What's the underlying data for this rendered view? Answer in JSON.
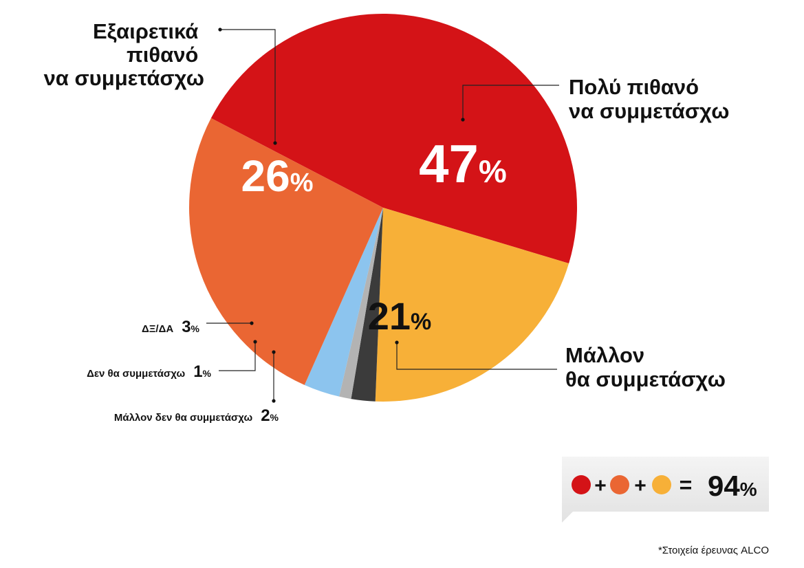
{
  "chart_data": {
    "type": "pie",
    "source": "*Στοιχεία έρευνας ALCO",
    "slices": [
      {
        "label_lines": [
          "Πολύ πιθανό",
          "να συμμετάσχω"
        ],
        "value": 47,
        "value_text": "47",
        "color": "#d41317",
        "value_color": "#ffffff"
      },
      {
        "label_lines": [
          "Μάλλον",
          "θα συμμετάσχω"
        ],
        "value": 21,
        "value_text": "21",
        "color": "#f7b038",
        "value_color": "#111111"
      },
      {
        "label_lines": [
          "Μάλλον δεν θα συμμετάσχω"
        ],
        "value": 2,
        "value_text": "2",
        "color": "#3b3b3b"
      },
      {
        "label_lines": [
          "Δεν θα συμμετάσχω"
        ],
        "value": 1,
        "value_text": "1",
        "color": "#b3b3b3"
      },
      {
        "label_lines": [
          "ΔΞ/ΔΑ"
        ],
        "value": 3,
        "value_text": "3",
        "color": "#8cc4ee"
      },
      {
        "label_lines": [
          "Εξαιρετικά",
          "πιθανό",
          "να συμμετάσχω"
        ],
        "value": 26,
        "value_text": "26",
        "color": "#ea6633",
        "value_color": "#ffffff"
      }
    ],
    "percent_sign": "%",
    "summary": {
      "colors": [
        "#d41317",
        "#ea6633",
        "#f7b038"
      ],
      "plus": "+",
      "equals": "=",
      "value": 94,
      "value_text": "94"
    }
  }
}
